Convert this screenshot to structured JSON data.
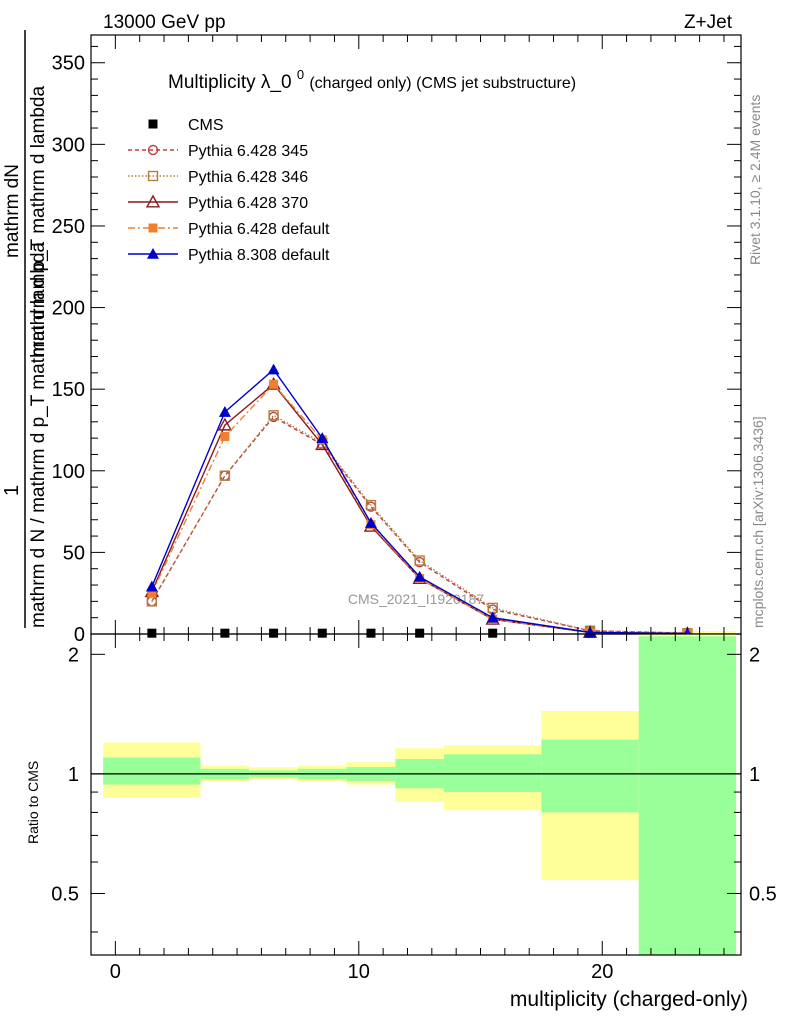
{
  "header": {
    "left": "13000 GeV pp",
    "right": "Z+Jet"
  },
  "side_labels": {
    "rivet": "Rivet 3.1.10, ≥ 2.4M events",
    "mcplots": "mcplots.cern.ch [arXiv:1306.3436]"
  },
  "watermark": "CMS_2021_I1920187",
  "chart_data": [
    {
      "type": "line",
      "title_main": "Multiplicity λ_0",
      "title_sup": "0",
      "title_sub": " (charged only) (CMS jet substructure)",
      "ylabel_line1": "mathrm dN",
      "ylabel_line2": "mathrm d p_T mathrm d lambda",
      "ylabel_frac_num": "1",
      "ylabel_frac_den": "mathrm d N / mathrm d p_T mathrm d lambda",
      "xlim": [
        -1,
        25.7
      ],
      "ylim": [
        0,
        367
      ],
      "yticks": [
        0,
        50,
        100,
        150,
        200,
        250,
        300,
        350
      ],
      "legend_position": "top-left",
      "series": [
        {
          "name": "CMS",
          "color": "#000000",
          "marker": "square-filled",
          "x": [
            1.5,
            4.5,
            6.5,
            8.5,
            10.5,
            12.5,
            15.5,
            19.5,
            23.5
          ],
          "values": [
            0.5,
            0.5,
            0.5,
            0.5,
            0.5,
            0.5,
            0.5,
            0.3,
            0.1
          ]
        },
        {
          "name": "Pythia 6.428 345",
          "color": "#c04040",
          "dash": "4,3",
          "marker": "circle-open",
          "x": [
            1.5,
            4.5,
            6.5,
            8.5,
            10.5,
            12.5,
            15.5,
            19.5,
            23.5
          ],
          "values": [
            20,
            97,
            133,
            116,
            78,
            44,
            15,
            2,
            0.5
          ]
        },
        {
          "name": "Pythia 6.428 346",
          "color": "#b08040",
          "dash": "1.5,2",
          "marker": "square-open",
          "x": [
            1.5,
            4.5,
            6.5,
            8.5,
            10.5,
            12.5,
            15.5,
            19.5,
            23.5
          ],
          "values": [
            20,
            97,
            134,
            117,
            79,
            45,
            16,
            2,
            0.5
          ]
        },
        {
          "name": "Pythia 6.428 370",
          "color": "#8b1a1a",
          "dash": "",
          "marker": "triangle-open",
          "x": [
            1.5,
            4.5,
            6.5,
            8.5,
            10.5,
            12.5,
            15.5,
            19.5,
            23.5
          ],
          "values": [
            26,
            128,
            153,
            116,
            66,
            34,
            9,
            1,
            0.3
          ]
        },
        {
          "name": "Pythia 6.428 default",
          "color": "#f08030",
          "dash": "7,3,2,3",
          "marker": "square-filled",
          "x": [
            1.5,
            4.5,
            6.5,
            8.5,
            10.5,
            12.5,
            15.5,
            19.5,
            23.5
          ],
          "values": [
            25,
            121,
            153,
            119,
            67,
            34,
            9,
            1,
            0.3
          ]
        },
        {
          "name": "Pythia 8.308 default",
          "color": "#0000cc",
          "dash": "",
          "marker": "triangle-filled",
          "x": [
            1.5,
            4.5,
            6.5,
            8.5,
            10.5,
            12.5,
            15.5,
            19.5,
            23.5
          ],
          "values": [
            29,
            136,
            162,
            120,
            68,
            35,
            10,
            1,
            0.3
          ]
        }
      ]
    },
    {
      "type": "area",
      "ylabel": "Ratio to CMS",
      "xlabel": "multiplicity (charged-only)",
      "xlim": [
        -1,
        25.7
      ],
      "ylim": [
        0.35,
        2.25
      ],
      "yticks": [
        0.5,
        1,
        2
      ],
      "xticks": [
        0,
        10,
        20
      ],
      "reference_line": 1,
      "band_outer_color": "#ffff99",
      "band_inner_color": "#99ff99",
      "bins": [
        {
          "x0": -0.5,
          "x1": 3.5,
          "outer": [
            0.87,
            1.2
          ],
          "inner": [
            0.94,
            1.1
          ]
        },
        {
          "x0": 3.5,
          "x1": 5.5,
          "outer": [
            0.96,
            1.05
          ],
          "inner": [
            0.97,
            1.03
          ]
        },
        {
          "x0": 5.5,
          "x1": 7.5,
          "outer": [
            0.97,
            1.04
          ],
          "inner": [
            0.98,
            1.02
          ]
        },
        {
          "x0": 7.5,
          "x1": 9.5,
          "outer": [
            0.96,
            1.05
          ],
          "inner": [
            0.97,
            1.03
          ]
        },
        {
          "x0": 9.5,
          "x1": 11.5,
          "outer": [
            0.94,
            1.07
          ],
          "inner": [
            0.96,
            1.04
          ]
        },
        {
          "x0": 11.5,
          "x1": 13.5,
          "outer": [
            0.85,
            1.16
          ],
          "inner": [
            0.92,
            1.09
          ]
        },
        {
          "x0": 13.5,
          "x1": 17.5,
          "outer": [
            0.81,
            1.18
          ],
          "inner": [
            0.9,
            1.12
          ]
        },
        {
          "x0": 17.5,
          "x1": 21.5,
          "outer": [
            0.54,
            1.44
          ],
          "inner": [
            0.8,
            1.22
          ]
        },
        {
          "x0": 21.5,
          "x1": 25.5,
          "outer": [
            0.35,
            2.25
          ],
          "inner": [
            0.35,
            2.22
          ]
        }
      ]
    }
  ]
}
